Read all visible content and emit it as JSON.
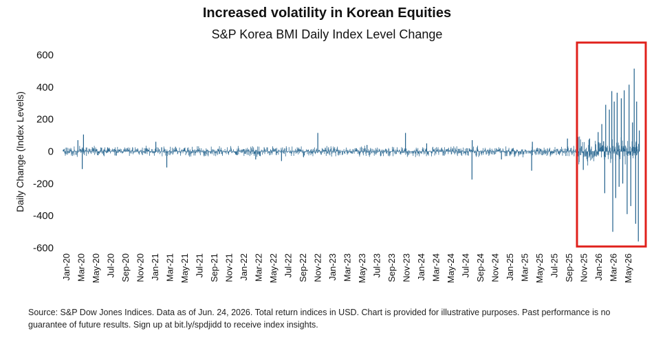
{
  "chart_data": {
    "type": "bar",
    "title": "Increased volatility in Korean Equities",
    "subtitle": "S&P Korea BMI Daily Index Level Change",
    "ylabel": "Daily Change (Index Levels)",
    "xlabel": "",
    "ylim": [
      -600,
      600
    ],
    "yticks": [
      600,
      400,
      200,
      0,
      -200,
      -400,
      -600
    ],
    "x_range": [
      "2020-01-01",
      "2026-06-24"
    ],
    "x_tick_labels": [
      "Jan-20",
      "Mar-20",
      "May-20",
      "Jul-20",
      "Sep-20",
      "Nov-20",
      "Jan-21",
      "Mar-21",
      "May-21",
      "Jul-21",
      "Sep-21",
      "Nov-21",
      "Jan-22",
      "Mar-22",
      "May-22",
      "Jul-22",
      "Sep-22",
      "Nov-22",
      "Jan-23",
      "Mar-23",
      "May-23",
      "Jul-23",
      "Sep-23",
      "Nov-23",
      "Jan-24",
      "Mar-24",
      "May-24",
      "Jul-24",
      "Sep-24",
      "Nov-24",
      "Jan-25",
      "Mar-25",
      "May-25",
      "Jul-25",
      "Sep-25",
      "Nov-25",
      "Jan-26",
      "Mar-26",
      "May-26"
    ],
    "grid": false,
    "bar_color": "#1f5f8b",
    "highlight_box": {
      "from": "2025-10-15",
      "to": "2026-06-24",
      "color": "#e0201b"
    },
    "series": [
      {
        "values": [
          {
            "date": "2020-01-01",
            "value": 10
          },
          {
            "date": "2020-03-01",
            "value": 70
          },
          {
            "date": "2020-03-19",
            "value": -110
          },
          {
            "date": "2020-03-24",
            "value": 105
          },
          {
            "date": "2020-07-01",
            "value": 25
          },
          {
            "date": "2021-01-15",
            "value": 60
          },
          {
            "date": "2021-03-01",
            "value": -100
          },
          {
            "date": "2022-03-01",
            "value": -50
          },
          {
            "date": "2022-06-15",
            "value": -60
          },
          {
            "date": "2022-11-11",
            "value": 115
          },
          {
            "date": "2023-06-01",
            "value": 40
          },
          {
            "date": "2023-11-06",
            "value": 115
          },
          {
            "date": "2024-02-01",
            "value": 50
          },
          {
            "date": "2024-08-05",
            "value": -175
          },
          {
            "date": "2024-08-06",
            "value": 70
          },
          {
            "date": "2024-12-04",
            "value": -50
          },
          {
            "date": "2025-04-07",
            "value": -120
          },
          {
            "date": "2025-04-10",
            "value": 60
          },
          {
            "date": "2025-09-01",
            "value": 80
          },
          {
            "date": "2025-10-15",
            "value": 90
          },
          {
            "date": "2025-11-05",
            "value": -115
          },
          {
            "date": "2025-12-01",
            "value": 80
          },
          {
            "date": "2026-01-05",
            "value": 120
          },
          {
            "date": "2026-01-20",
            "value": 170
          },
          {
            "date": "2026-02-01",
            "value": -260
          },
          {
            "date": "2026-02-05",
            "value": 290
          },
          {
            "date": "2026-02-20",
            "value": 260
          },
          {
            "date": "2026-03-02",
            "value": 375
          },
          {
            "date": "2026-03-06",
            "value": -500
          },
          {
            "date": "2026-03-12",
            "value": 310
          },
          {
            "date": "2026-03-18",
            "value": -290
          },
          {
            "date": "2026-03-24",
            "value": 365
          },
          {
            "date": "2026-04-01",
            "value": -220
          },
          {
            "date": "2026-04-10",
            "value": 330
          },
          {
            "date": "2026-04-16",
            "value": -200
          },
          {
            "date": "2026-04-22",
            "value": 380
          },
          {
            "date": "2026-05-04",
            "value": -390
          },
          {
            "date": "2026-05-12",
            "value": 415
          },
          {
            "date": "2026-05-19",
            "value": -340
          },
          {
            "date": "2026-05-26",
            "value": 180
          },
          {
            "date": "2026-06-02",
            "value": 515
          },
          {
            "date": "2026-06-08",
            "value": -450
          },
          {
            "date": "2026-06-12",
            "value": 310
          },
          {
            "date": "2026-06-19",
            "value": -560
          },
          {
            "date": "2026-06-23",
            "value": 130
          }
        ]
      }
    ]
  },
  "footnote": "Source: S&P Dow Jones Indices. Data as of Jun. 24, 2026. Total return indices in USD. Chart is provided for illustrative purposes. Past performance is no guarantee of future results. Sign up at bit.ly/spdjidd to receive index insights."
}
